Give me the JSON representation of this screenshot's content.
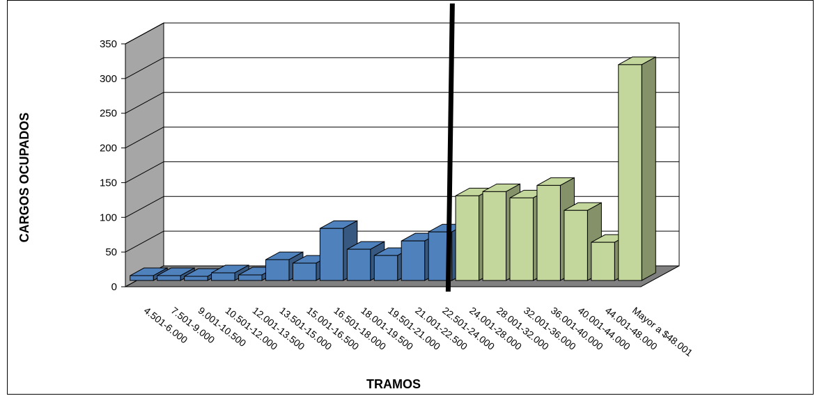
{
  "chart_data": {
    "type": "bar",
    "three_d": true,
    "xlabel": "TRAMOS",
    "ylabel": "CARGOS OCUPADOS",
    "ylim": [
      0,
      350
    ],
    "yticks": [
      0,
      50,
      100,
      150,
      200,
      250,
      300,
      350
    ],
    "yticks_labels": [
      "0",
      "50",
      "100",
      "150",
      "200",
      "250",
      "300",
      "350"
    ],
    "grid": true,
    "categories": [
      "4.501-6.000",
      "7.501-9.000",
      "9.001-10.500",
      "10.501-12.000",
      "12.001-13.500",
      "13.501-15.000",
      "15.001-16.500",
      "16.501-18.000",
      "18.001-19.500",
      "19.501-21.000",
      "21.001-22.500",
      "22.501-24.000",
      "24.001-28.000",
      "28.001-32.000",
      "32.001-36.000",
      "36.001-40.000",
      "40.001-44.000",
      "44.001-48.000",
      "Mayor a $48.001"
    ],
    "values": [
      7,
      7,
      6,
      11,
      8,
      30,
      25,
      75,
      45,
      36,
      57,
      70,
      122,
      128,
      119,
      137,
      101,
      55,
      311
    ],
    "bar_groups": [
      {
        "from": 0,
        "to": 11,
        "color": "#4F81BD"
      },
      {
        "from": 12,
        "to": 18,
        "color": "#C3D69B"
      }
    ],
    "divider_after_category": 11
  }
}
